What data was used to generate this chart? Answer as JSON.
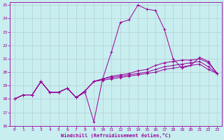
{
  "xlabel": "Windchill (Refroidissement éolien,°C)",
  "xlim": [
    -0.5,
    23.5
  ],
  "ylim": [
    16,
    25.2
  ],
  "yticks": [
    16,
    17,
    18,
    19,
    20,
    21,
    22,
    23,
    24,
    25
  ],
  "xticks": [
    0,
    1,
    2,
    3,
    4,
    5,
    6,
    7,
    8,
    9,
    10,
    11,
    12,
    13,
    14,
    15,
    16,
    17,
    18,
    19,
    20,
    21,
    22,
    23
  ],
  "bg_color": "#c8eef0",
  "line_color": "#990099",
  "grid_color": "#b0c8c8",
  "lines": [
    [
      18.0,
      18.3,
      18.3,
      19.3,
      18.5,
      18.5,
      18.8,
      18.1,
      18.5,
      16.3,
      19.5,
      21.5,
      23.7,
      23.9,
      25.0,
      24.7,
      24.6,
      23.2,
      21.0,
      20.3,
      20.5,
      21.1,
      20.8,
      19.9
    ],
    [
      18.0,
      18.3,
      18.3,
      19.3,
      18.5,
      18.5,
      18.8,
      18.1,
      18.6,
      19.3,
      19.5,
      19.7,
      19.8,
      19.9,
      20.1,
      20.2,
      20.5,
      20.7,
      20.8,
      20.9,
      20.9,
      21.0,
      20.7,
      19.9
    ],
    [
      18.0,
      18.3,
      18.3,
      19.3,
      18.5,
      18.5,
      18.8,
      18.1,
      18.6,
      19.3,
      19.5,
      19.6,
      19.7,
      19.8,
      19.9,
      20.0,
      20.2,
      20.4,
      20.5,
      20.6,
      20.7,
      20.8,
      20.4,
      19.9
    ],
    [
      18.0,
      18.3,
      18.3,
      19.3,
      18.5,
      18.5,
      18.8,
      18.1,
      18.6,
      19.3,
      19.4,
      19.5,
      19.6,
      19.7,
      19.8,
      19.9,
      20.0,
      20.2,
      20.3,
      20.4,
      20.5,
      20.6,
      20.2,
      19.9
    ]
  ]
}
